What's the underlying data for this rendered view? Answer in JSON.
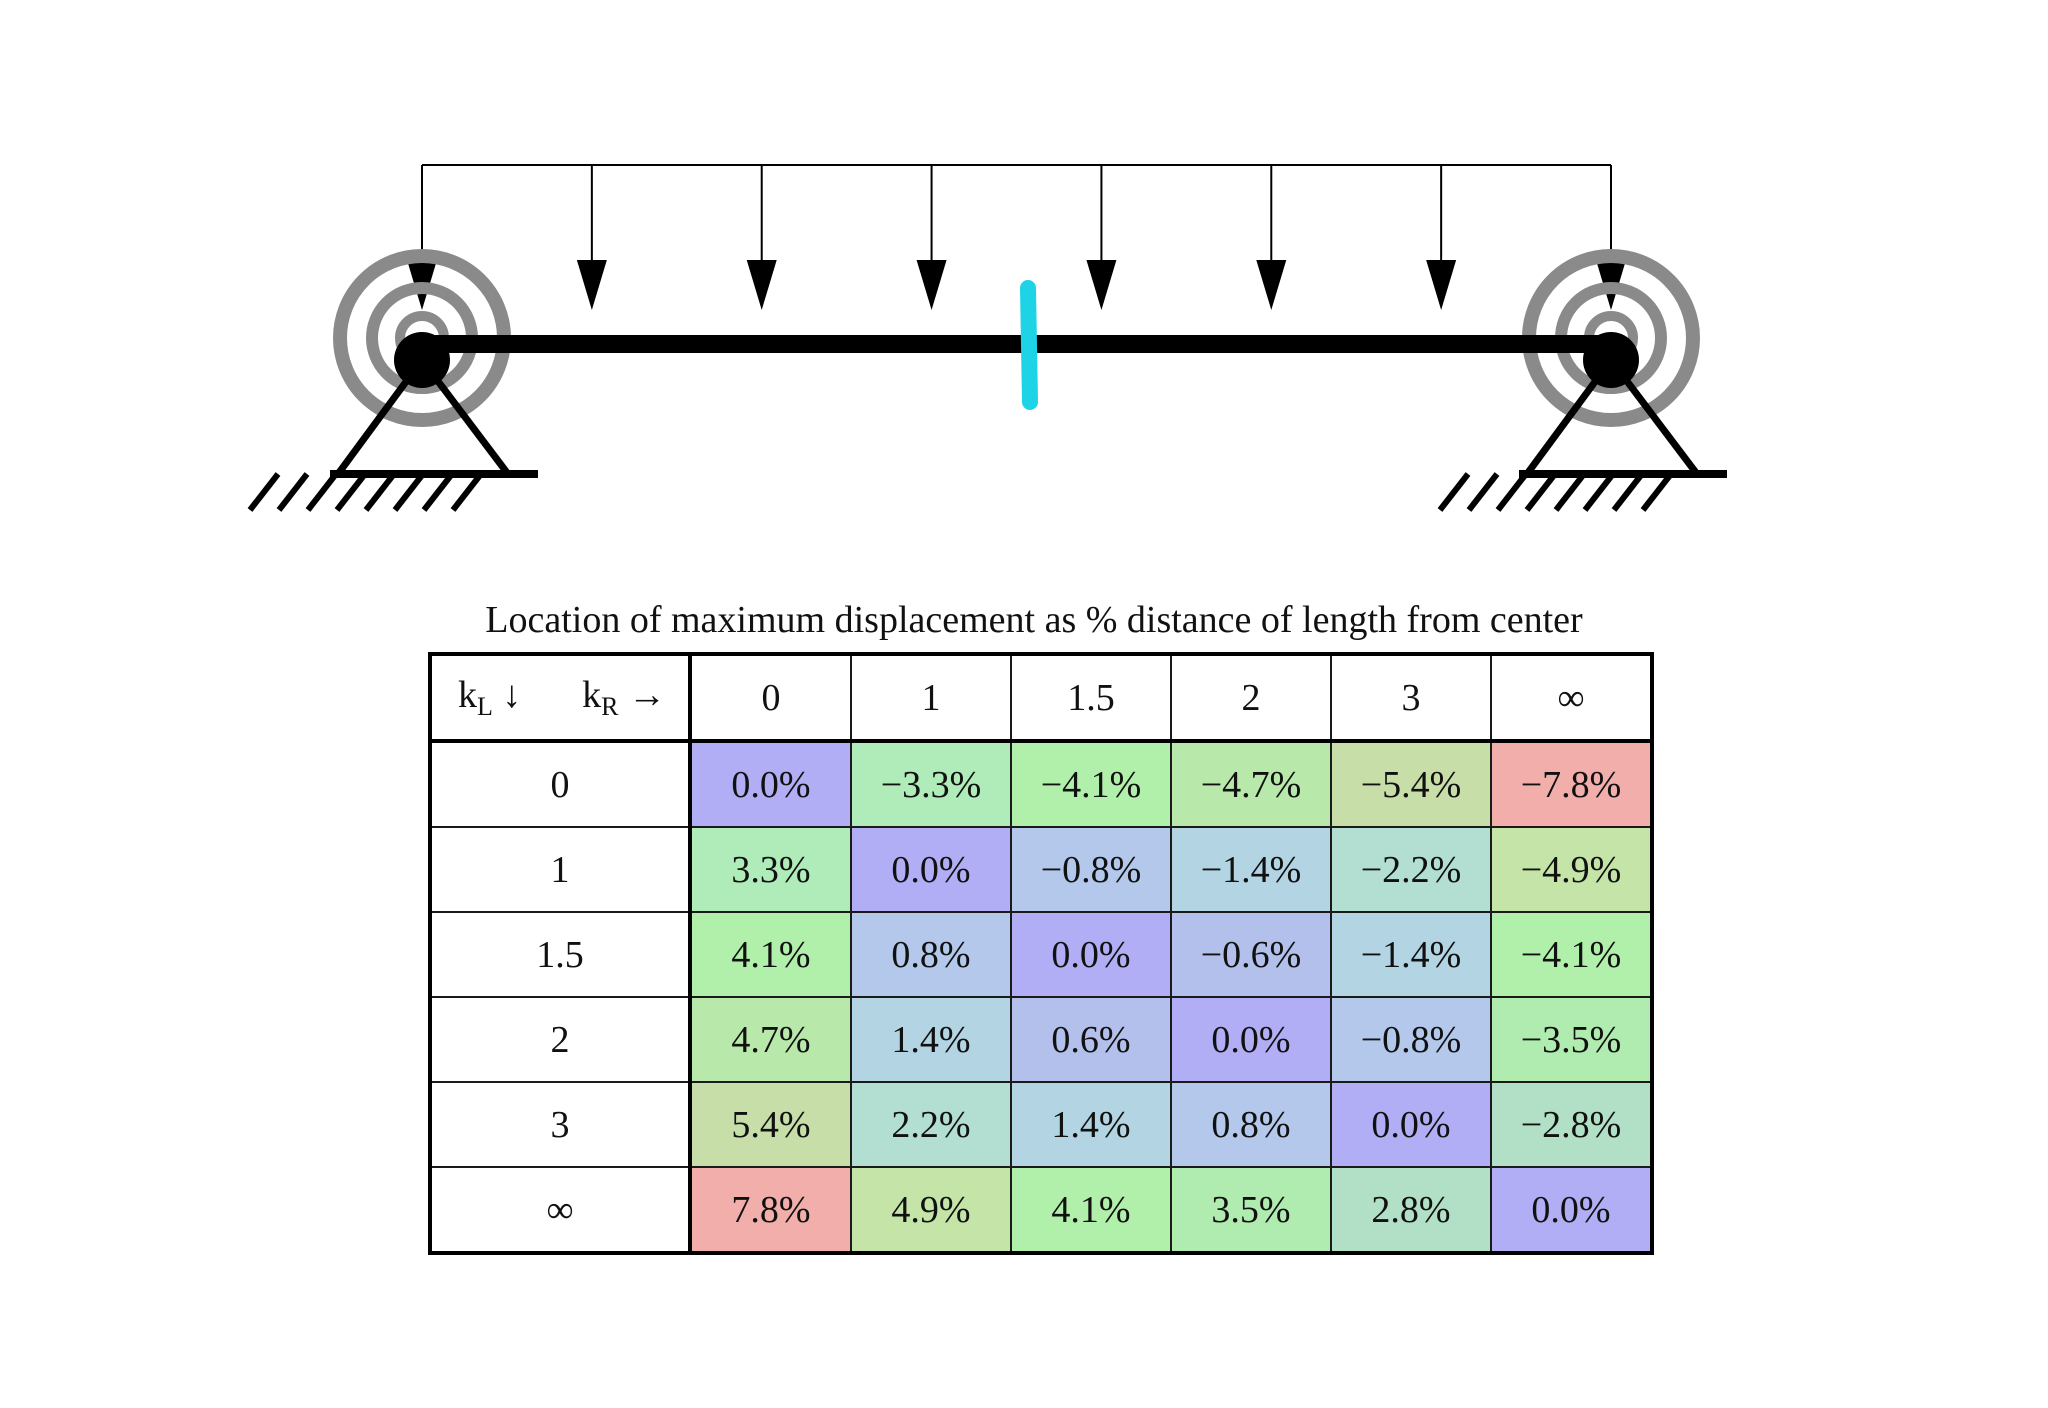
{
  "caption": "Location of maximum displacement as % distance of length from center",
  "corner": {
    "row_symbol": "k",
    "row_sub": "L",
    "row_arrow": "↓",
    "col_symbol": "k",
    "col_sub": "R",
    "col_arrow": "→"
  },
  "column_headers": [
    "0",
    "1",
    "1.5",
    "2",
    "3",
    "∞"
  ],
  "row_headers": [
    "0",
    "1",
    "1.5",
    "2",
    "3",
    "∞"
  ],
  "cells": [
    [
      "0.0%",
      "−3.3%",
      "−4.1%",
      "−4.7%",
      "−5.4%",
      "−7.8%"
    ],
    [
      "3.3%",
      "0.0%",
      "−0.8%",
      "−1.4%",
      "−2.2%",
      "−4.9%"
    ],
    [
      "4.1%",
      "0.8%",
      "0.0%",
      "−0.6%",
      "−1.4%",
      "−4.1%"
    ],
    [
      "4.7%",
      "1.4%",
      "0.6%",
      "0.0%",
      "−0.8%",
      "−3.5%"
    ],
    [
      "5.4%",
      "2.2%",
      "1.4%",
      "0.8%",
      "0.0%",
      "−2.8%"
    ],
    [
      "7.8%",
      "4.9%",
      "4.1%",
      "3.5%",
      "2.8%",
      "0.0%"
    ]
  ],
  "cell_colors": [
    [
      "#b1aef5",
      "#b0ecba",
      "#b1f0ab",
      "#b8e9ab",
      "#c8dea8",
      "#f1aeab"
    ],
    [
      "#b0ecba",
      "#b1aef5",
      "#b3c8eb",
      "#b2d4e3",
      "#b2dfd2",
      "#c4e4a8"
    ],
    [
      "#b1f0ab",
      "#b3c8eb",
      "#b1aef5",
      "#b3c0ec",
      "#b2d4e3",
      "#b1f0ab"
    ],
    [
      "#b8e9ab",
      "#b2d4e3",
      "#b3c0ec",
      "#b1aef5",
      "#b3c8eb",
      "#b0ecb0"
    ],
    [
      "#c8dea8",
      "#b2dfd2",
      "#b2d4e3",
      "#b3c8eb",
      "#b1aef5",
      "#b2e0c6"
    ],
    [
      "#f1aeab",
      "#c4e4a8",
      "#b1f0ab",
      "#b0ecb0",
      "#b2e0c6",
      "#b1aef5"
    ]
  ],
  "colors": {
    "spring_gray": "#8a8a8a",
    "midpoint_marker": "#1fd3e6",
    "ink": "#000000"
  },
  "diagram": {
    "distributed_load_arrow_count": 8,
    "supports": [
      "left-rotational-spring-pin",
      "right-rotational-spring-pin"
    ]
  }
}
